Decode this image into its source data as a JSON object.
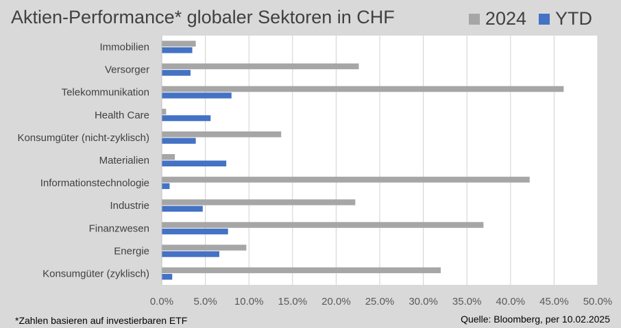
{
  "chart_data": {
    "type": "bar",
    "orientation": "horizontal",
    "title": "Aktien-Performance* globaler Sektoren in CHF",
    "categories": [
      "Immobilien",
      "Versorger",
      "Telekommunikation",
      "Health Care",
      "Konsumgüter (nicht-zyklisch)",
      "Materialien",
      "Informationstechnologie",
      "Industrie",
      "Finanzwesen",
      "Energie",
      "Konsumgüter (zyklisch)"
    ],
    "series": [
      {
        "name": "2024",
        "color": "#a6a6a6",
        "values": [
          3.9,
          22.6,
          46.1,
          0.5,
          13.7,
          1.5,
          42.2,
          22.2,
          36.9,
          9.7,
          32.0
        ]
      },
      {
        "name": "YTD",
        "color": "#4472c4",
        "values": [
          3.5,
          3.3,
          8.0,
          5.6,
          3.9,
          7.4,
          0.9,
          4.7,
          7.6,
          6.6,
          1.2
        ]
      }
    ],
    "xlim": [
      0,
      50
    ],
    "xticks": [
      0,
      5,
      10,
      15,
      20,
      25,
      30,
      35,
      40,
      45,
      50
    ],
    "xtick_labels": [
      "0.0%",
      "5.0%",
      "10.0%",
      "15.0%",
      "20.0%",
      "25.0%",
      "30.0%",
      "35.0%",
      "40.0%",
      "45.0%",
      "50.0%"
    ],
    "grid": true,
    "legend_position": "top-right"
  },
  "footnote": "*Zahlen basieren auf investierbaren ETF",
  "source": "Quelle: Bloomberg, per 10.02.2025"
}
